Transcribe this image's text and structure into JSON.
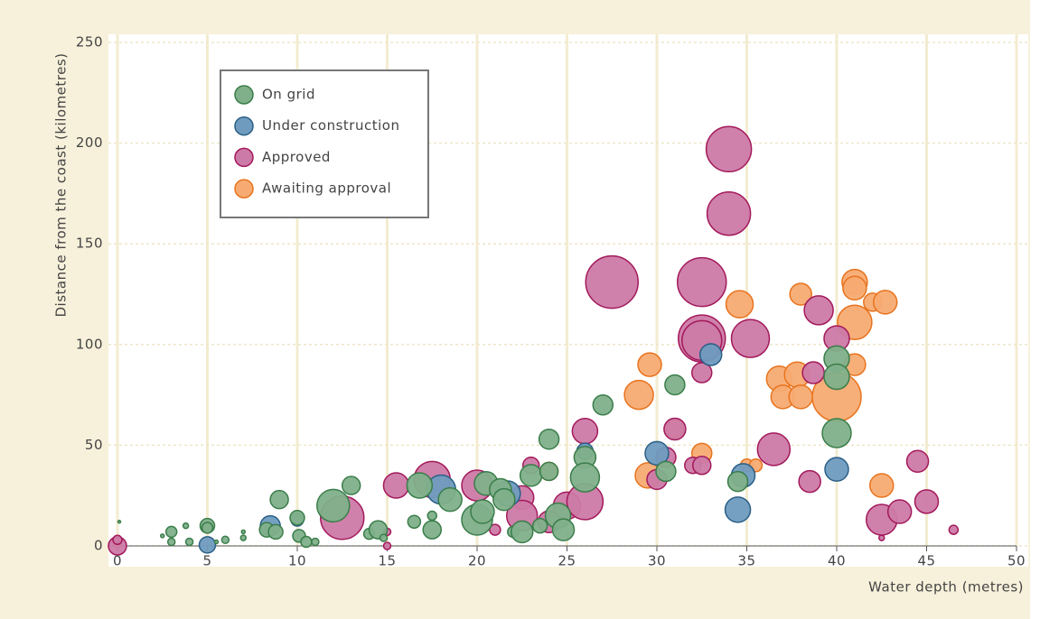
{
  "chart_data": {
    "type": "scatter",
    "x_label": "Water depth (metres)",
    "y_label": "Distance from the coast (kilometres)",
    "xlim": [
      0,
      50
    ],
    "xticks": [
      0,
      5,
      10,
      15,
      20,
      25,
      30,
      35,
      40,
      45,
      50
    ],
    "ylim": [
      0,
      250
    ],
    "yticks": [
      0,
      50,
      100,
      150,
      200,
      250
    ],
    "grid": true,
    "legend": "upper left",
    "series": [
      {
        "name": "On grid",
        "color": "#80b08a",
        "edge": "#3a7d4a",
        "x": [
          0.1,
          2.5,
          3,
          3,
          3.8,
          4,
          5,
          5,
          5.5,
          6,
          7,
          7,
          8.3,
          8.8,
          9,
          10,
          10.1,
          10.5,
          11,
          12,
          13,
          14,
          14.5,
          14.8,
          16.5,
          16.8,
          17.5,
          17.5,
          18.5,
          20,
          20.3,
          20.5,
          21.3,
          21.5,
          22,
          22.5,
          23,
          23.5,
          24,
          24,
          24.5,
          24.8,
          26,
          26,
          27,
          31,
          30.5,
          34.5,
          40,
          40,
          40
        ],
        "y": [
          12,
          5,
          7,
          2,
          10,
          2,
          10,
          9,
          2,
          3,
          7,
          4,
          8,
          7,
          23,
          14,
          5,
          2,
          2,
          20,
          30,
          6,
          8,
          4,
          12,
          30,
          8,
          15,
          23,
          13,
          17,
          31,
          28,
          23,
          7,
          7,
          35,
          10,
          37,
          53,
          15,
          8,
          44,
          34,
          70,
          80,
          37,
          32,
          93,
          84,
          56
        ],
        "sizes": [
          1.5,
          2,
          6,
          4,
          3,
          4,
          8,
          6,
          2,
          4,
          2,
          3,
          8,
          8,
          10,
          8,
          7,
          6,
          4,
          18,
          10,
          6,
          10,
          4,
          7,
          14,
          10,
          5,
          13,
          17,
          13,
          13,
          12,
          12,
          6,
          12,
          12,
          8,
          10,
          11,
          14,
          12,
          12,
          16,
          11,
          11,
          11,
          11,
          14,
          14,
          16
        ]
      },
      {
        "name": "Under construction",
        "color": "#6f9bbf",
        "edge": "#2a5f86",
        "x": [
          8.5,
          10,
          5,
          18,
          21.7,
          26,
          30,
          33,
          34.8,
          34.5,
          40
        ],
        "y": [
          10,
          13,
          0.5,
          28,
          26,
          47,
          46,
          95,
          35,
          18,
          38
        ],
        "sizes": [
          11,
          7,
          9,
          16,
          14,
          9,
          13,
          12,
          13,
          14,
          13
        ]
      },
      {
        "name": "Approved",
        "color": "#cc7aa7",
        "edge": "#a3195b",
        "x": [
          0,
          0,
          12.5,
          15,
          15,
          15.5,
          17.5,
          20,
          21,
          22.5,
          22.5,
          23,
          24,
          25,
          26,
          26,
          27.5,
          30,
          30.5,
          31,
          32,
          32.5,
          32.5,
          32.5,
          32.5,
          32.5,
          34,
          34,
          35.2,
          36.5,
          38.5,
          38.7,
          39,
          40,
          42.5,
          42.5,
          43.5,
          44.5,
          45,
          46.5
        ],
        "y": [
          0,
          3,
          14,
          7,
          0,
          30,
          33,
          30,
          8,
          24,
          15,
          40,
          12,
          20,
          22,
          57,
          131,
          33,
          44,
          58,
          40,
          40,
          103,
          102,
          131,
          86,
          197,
          165,
          103,
          48,
          32,
          86,
          117,
          103,
          4,
          13,
          17,
          42,
          22,
          8
        ],
        "sizes": [
          10,
          5,
          24,
          4,
          4,
          14,
          20,
          17,
          6,
          13,
          17,
          9,
          12,
          15,
          20,
          14,
          29,
          11,
          11,
          12,
          9,
          10,
          26,
          22,
          27,
          11,
          25,
          24,
          21,
          18,
          12,
          12,
          16,
          14,
          3,
          17,
          13,
          12,
          13,
          5
        ]
      },
      {
        "name": "Awaiting approval",
        "color": "#f7ab72",
        "edge": "#e8731e",
        "x": [
          0,
          24,
          29,
          29.6,
          29.5,
          31,
          32.5,
          34.6,
          35,
          35.5,
          36.8,
          37,
          38,
          37.8,
          38,
          40,
          41,
          41,
          41,
          41,
          42,
          42.7,
          42.5
        ],
        "y": [
          1,
          37,
          75,
          90,
          35,
          58,
          46,
          120,
          40,
          40,
          83,
          74,
          125,
          85,
          74,
          74,
          131,
          128,
          111,
          90,
          121,
          121,
          30
        ],
        "sizes": [
          4,
          10,
          16,
          13,
          14,
          10,
          11,
          15,
          7,
          7,
          14,
          13,
          12,
          14,
          13,
          27,
          14,
          13,
          19,
          12,
          10,
          13,
          13
        ]
      }
    ]
  }
}
